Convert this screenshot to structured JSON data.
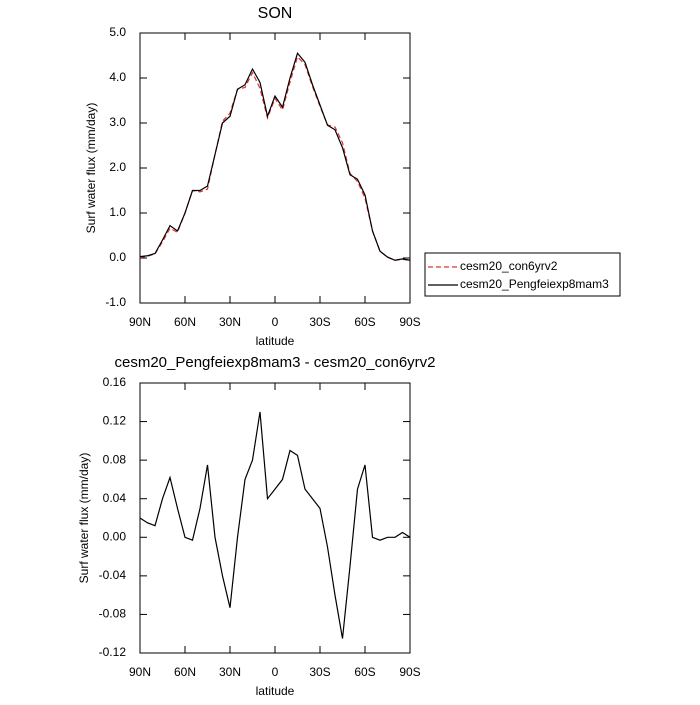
{
  "chart_data": [
    {
      "type": "line",
      "title": "SON",
      "ylabel": "Surf water flux (mm/day)",
      "xlabel": "latitude",
      "x": [
        90,
        85,
        80,
        75,
        70,
        65,
        60,
        55,
        50,
        45,
        40,
        35,
        30,
        25,
        20,
        15,
        10,
        5,
        0,
        -5,
        -10,
        -15,
        -20,
        -25,
        -30,
        -35,
        -40,
        -45,
        -50,
        -55,
        -60,
        -65,
        -70,
        -75,
        -80,
        -85,
        -90
      ],
      "series": [
        {
          "name": "cesm20_con6yrv2",
          "color": "#e03030",
          "style": "dashed",
          "values": [
            0.01,
            0.04,
            0.09,
            0.36,
            0.66,
            0.57,
            1.0,
            1.5,
            1.47,
            1.53,
            2.3,
            3.04,
            3.22,
            3.75,
            3.79,
            4.12,
            3.77,
            3.11,
            3.55,
            3.29,
            3.91,
            4.47,
            4.3,
            3.81,
            3.37,
            2.96,
            2.91,
            2.56,
            1.88,
            1.7,
            1.33,
            0.6,
            0.15,
            0.02,
            -0.05,
            -0.03,
            -0.05
          ]
        },
        {
          "name": "cesm20_Pengfeiexp8mam3",
          "color": "#000000",
          "style": "solid",
          "values": [
            0.03,
            0.05,
            0.1,
            0.4,
            0.72,
            0.6,
            1.0,
            1.5,
            1.5,
            1.6,
            2.3,
            3.0,
            3.15,
            3.75,
            3.85,
            4.2,
            3.9,
            3.15,
            3.6,
            3.35,
            4.0,
            4.55,
            4.35,
            3.85,
            3.4,
            2.95,
            2.85,
            2.45,
            1.85,
            1.75,
            1.4,
            0.6,
            0.15,
            0.02,
            -0.05,
            -0.02,
            -0.05
          ]
        }
      ],
      "xlim": [
        90,
        -90
      ],
      "xticks": [
        {
          "value": 90,
          "label": "90N"
        },
        {
          "value": 60,
          "label": "60N"
        },
        {
          "value": 30,
          "label": "30N"
        },
        0,
        {
          "value": -30,
          "label": "30S"
        },
        {
          "value": -60,
          "label": "60S"
        },
        {
          "value": -90,
          "label": "90S"
        }
      ],
      "ylim": [
        -1,
        5
      ],
      "yticks": [
        {
          "value": -1,
          "label": "-1.0"
        },
        {
          "value": 0,
          "label": "0.0"
        },
        {
          "value": 1,
          "label": "1.0"
        },
        {
          "value": 2,
          "label": "2.0"
        },
        {
          "value": 3,
          "label": "3.0"
        },
        {
          "value": 4,
          "label": "4.0"
        },
        {
          "value": 5,
          "label": "5.0"
        }
      ],
      "legend": "right"
    },
    {
      "type": "line",
      "title": "cesm20_Pengfeiexp8mam3 - cesm20_con6yrv2",
      "ylabel": "Surf water flux (mm/day)",
      "xlabel": "latitude",
      "x": [
        90,
        85,
        80,
        75,
        70,
        65,
        60,
        55,
        50,
        45,
        40,
        35,
        30,
        25,
        20,
        15,
        10,
        5,
        0,
        -5,
        -10,
        -15,
        -20,
        -25,
        -30,
        -35,
        -40,
        -45,
        -50,
        -55,
        -60,
        -65,
        -70,
        -75,
        -80,
        -85,
        -90
      ],
      "values": [
        0.02,
        0.015,
        0.012,
        0.04,
        0.062,
        0.03,
        0.0,
        -0.003,
        0.03,
        0.075,
        0.0,
        -0.04,
        -0.073,
        0.0,
        0.06,
        0.08,
        0.13,
        0.04,
        0.05,
        0.06,
        0.09,
        0.085,
        0.05,
        0.04,
        0.03,
        -0.01,
        -0.06,
        -0.105,
        -0.03,
        0.05,
        0.075,
        0.0,
        -0.003,
        0.0,
        0.0,
        0.005,
        0.0
      ],
      "color": "#000000",
      "xlim": [
        90,
        -90
      ],
      "xticks": [
        {
          "value": 90,
          "label": "90N"
        },
        {
          "value": 60,
          "label": "60N"
        },
        {
          "value": 30,
          "label": "30N"
        },
        0,
        {
          "value": -30,
          "label": "30S"
        },
        {
          "value": -60,
          "label": "60S"
        },
        {
          "value": -90,
          "label": "90S"
        }
      ],
      "ylim": [
        -0.12,
        0.16
      ],
      "yticks": [
        -0.12,
        -0.08,
        -0.04,
        {
          "value": 0,
          "label": "0.00"
        },
        0.04,
        0.08,
        0.12,
        0.16
      ]
    }
  ]
}
